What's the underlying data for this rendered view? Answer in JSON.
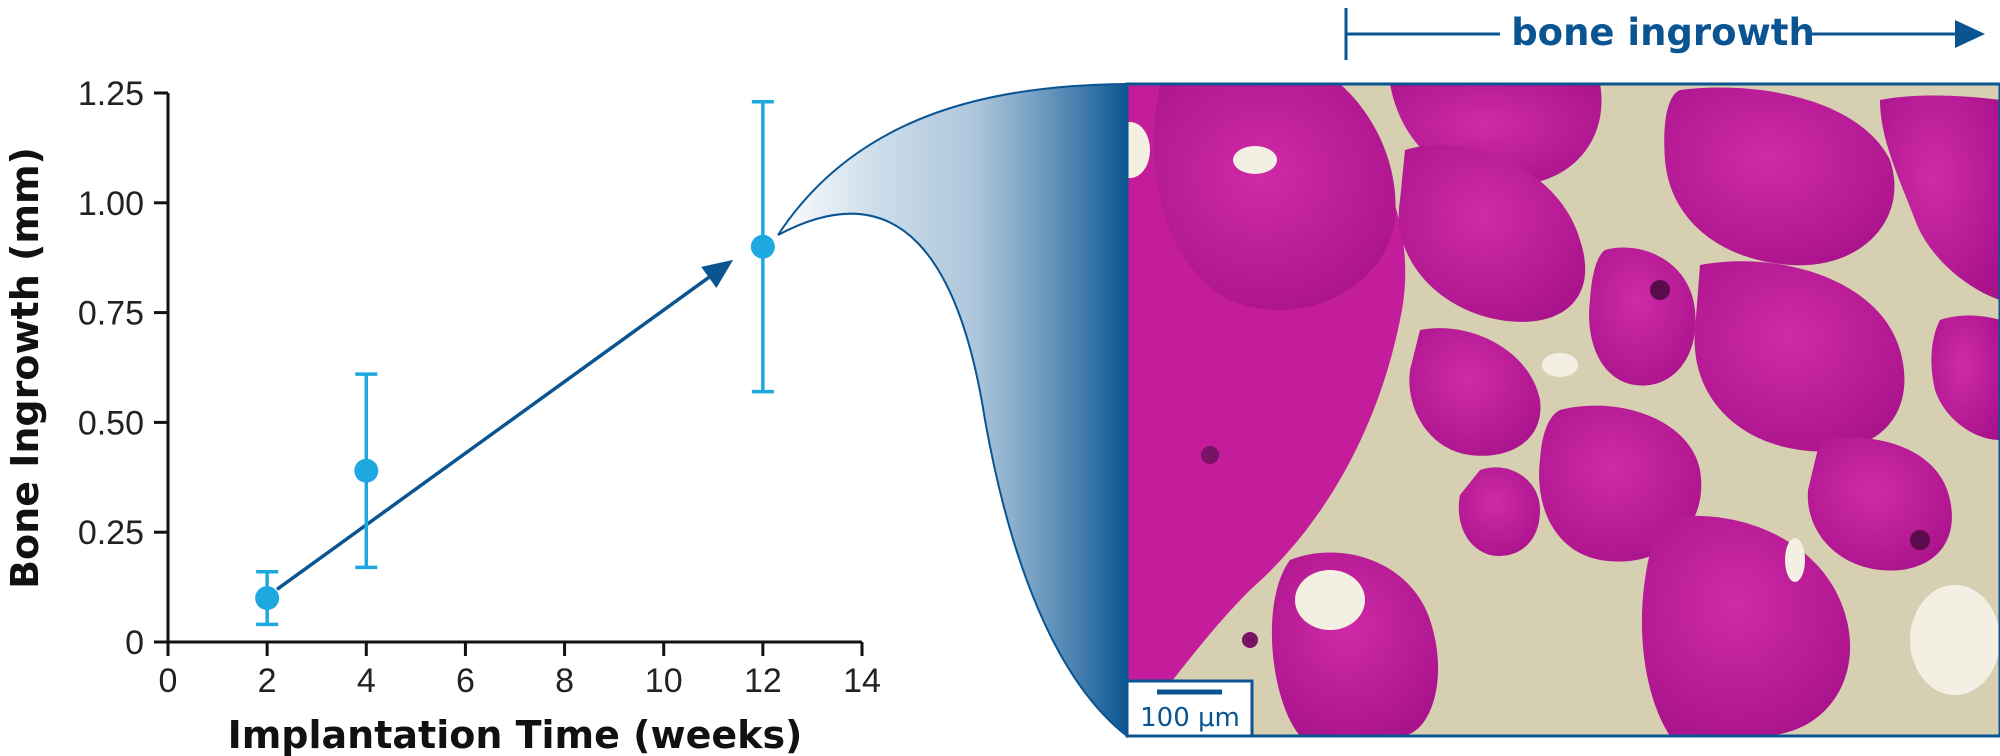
{
  "chart_data": {
    "type": "scatter",
    "xlabel": "Implantation Time (weeks)",
    "ylabel": "Bone Ingrowth (mm)",
    "xlim": [
      0,
      14
    ],
    "ylim": [
      0,
      1.25
    ],
    "x_ticks": [
      "0",
      "2",
      "4",
      "6",
      "8",
      "10",
      "12",
      "14"
    ],
    "y_ticks": [
      "0",
      "0.25",
      "0.50",
      "0.75",
      "1.00",
      "1.25"
    ],
    "x": [
      2,
      4,
      12
    ],
    "y": [
      0.1,
      0.39,
      0.9
    ],
    "error_low": [
      0.04,
      0.17,
      0.57
    ],
    "error_high": [
      0.16,
      0.61,
      1.23
    ],
    "trend_arrow": {
      "from": [
        2.2,
        0.12
      ],
      "to": [
        11.4,
        0.87
      ]
    },
    "grid": false,
    "legend": "none"
  },
  "inset": {
    "banner_label": "bone ingrowth",
    "scale_bar_label": "100 μm",
    "image_kind": "stained histology micrograph"
  },
  "colors": {
    "marker": "#1ea8e0",
    "accent": "#0a5591",
    "axis": "#111111",
    "tissue_magenta": "#c51a9e",
    "tissue_background": "#cfc6a8"
  }
}
